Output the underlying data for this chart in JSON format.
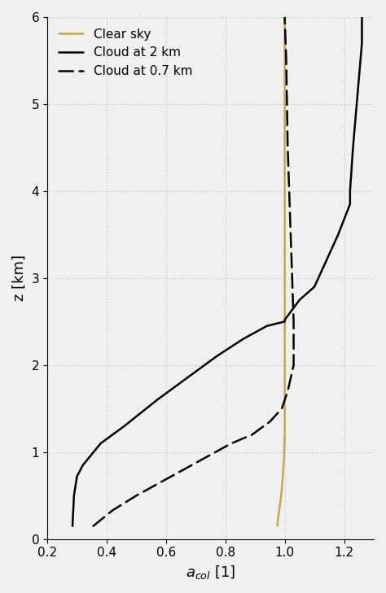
{
  "title": "",
  "xlabel": "a_{col} [1]",
  "ylabel": "z [km]",
  "xlim": [
    0.2,
    1.3
  ],
  "ylim": [
    0.0,
    6.0
  ],
  "xticks": [
    0.2,
    0.4,
    0.6,
    0.8,
    1.0,
    1.2
  ],
  "yticks": [
    0,
    1,
    2,
    3,
    4,
    5,
    6
  ],
  "grid_color": "#c8c8c8",
  "background_color": "#f0f0f0",
  "clear_sky": {
    "x": [
      0.975,
      0.978,
      0.982,
      0.988,
      0.993,
      0.997,
      1.0,
      1.0,
      1.0,
      1.0,
      1.0
    ],
    "y": [
      0.15,
      0.25,
      0.35,
      0.5,
      0.7,
      0.9,
      1.2,
      2.0,
      3.0,
      4.5,
      6.0
    ],
    "color": "#c8a84b",
    "linestyle": "-",
    "linewidth": 1.8,
    "label": "Clear sky"
  },
  "cloud_2km": {
    "x": [
      0.285,
      0.29,
      0.3,
      0.32,
      0.38,
      0.46,
      0.57,
      0.67,
      0.77,
      0.86,
      0.94,
      1.0,
      1.0,
      1.05,
      1.1,
      1.18,
      1.22,
      1.22,
      1.23,
      1.25,
      1.26,
      1.26
    ],
    "y": [
      0.15,
      0.5,
      0.72,
      0.85,
      1.1,
      1.3,
      1.6,
      1.85,
      2.1,
      2.3,
      2.45,
      2.5,
      2.52,
      2.75,
      2.9,
      3.5,
      3.85,
      4.0,
      4.5,
      5.3,
      5.7,
      6.0
    ],
    "color": "#000000",
    "linestyle": "-",
    "linewidth": 1.8,
    "label": "Cloud at 2 km"
  },
  "cloud_07km": {
    "x": [
      0.355,
      0.38,
      0.42,
      0.5,
      0.58,
      0.66,
      0.74,
      0.82,
      0.89,
      0.95,
      0.99,
      1.01,
      1.03,
      1.03,
      1.02,
      1.01,
      1.005,
      1.0
    ],
    "y": [
      0.15,
      0.22,
      0.33,
      0.5,
      0.65,
      0.8,
      0.95,
      1.1,
      1.2,
      1.35,
      1.5,
      1.7,
      2.0,
      2.5,
      3.5,
      4.5,
      5.5,
      6.0
    ],
    "color": "#000000",
    "linestyle": "--",
    "linewidth": 1.8,
    "label": "Cloud at 0.7 km"
  },
  "legend_loc": "upper left",
  "legend_fontsize": 11
}
